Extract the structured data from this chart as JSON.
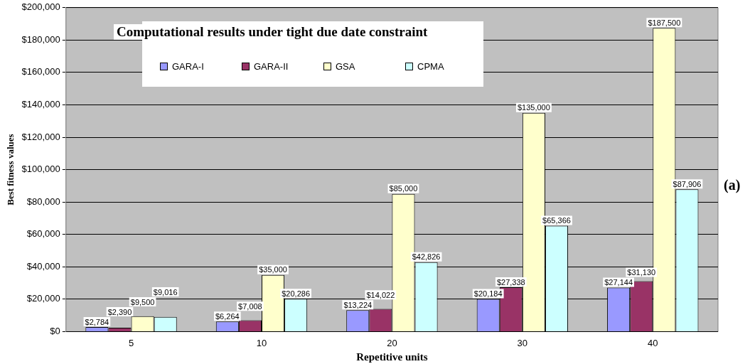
{
  "chart_data": {
    "type": "bar",
    "title": "Computational results under tight due date constraint",
    "xlabel": "Repetitive units",
    "ylabel": "Best fitness values",
    "annotations": [
      "(a)"
    ],
    "categories": [
      "5",
      "10",
      "20",
      "30",
      "40"
    ],
    "series": [
      {
        "name": "GARA-I",
        "color": "#9999ff",
        "values": [
          2784,
          6264,
          13224,
          20184,
          27144
        ],
        "value_labels": [
          "$2,784",
          "$6,264",
          "$13,224",
          "$20,184",
          "$27,144"
        ]
      },
      {
        "name": "GARA-II",
        "color": "#993366",
        "values": [
          2390,
          7008,
          14022,
          27338,
          31130
        ],
        "value_labels": [
          "$2,390",
          "$7,008",
          "$14,022",
          "$27,338",
          "$31,130"
        ]
      },
      {
        "name": "GSA",
        "color": "#ffffcc",
        "values": [
          9500,
          35000,
          85000,
          135000,
          187500
        ],
        "value_labels": [
          "$9,500",
          "$35,000",
          "$85,000",
          "$135,000",
          "$187,500"
        ]
      },
      {
        "name": "CPMA",
        "color": "#ccffff",
        "values": [
          9016,
          20286,
          42826,
          65366,
          87906
        ],
        "value_labels": [
          "$9,016",
          "$20,286",
          "$42,826",
          "$65,366",
          "$87,906"
        ]
      }
    ],
    "ylim": [
      0,
      200000
    ],
    "yticks": [
      {
        "value": 0,
        "label": "$0"
      },
      {
        "value": 20000,
        "label": "$20,000"
      },
      {
        "value": 40000,
        "label": "$40,000"
      },
      {
        "value": 60000,
        "label": "$60,000"
      },
      {
        "value": 80000,
        "label": "$80,000"
      },
      {
        "value": 100000,
        "label": "$100,000"
      },
      {
        "value": 120000,
        "label": "$120,000"
      },
      {
        "value": 140000,
        "label": "$140,000"
      },
      {
        "value": 160000,
        "label": "$160,000"
      },
      {
        "value": 180000,
        "label": "$180,000"
      },
      {
        "value": 200000,
        "label": "$200,000"
      }
    ],
    "grid": "y",
    "legend": "top left"
  }
}
